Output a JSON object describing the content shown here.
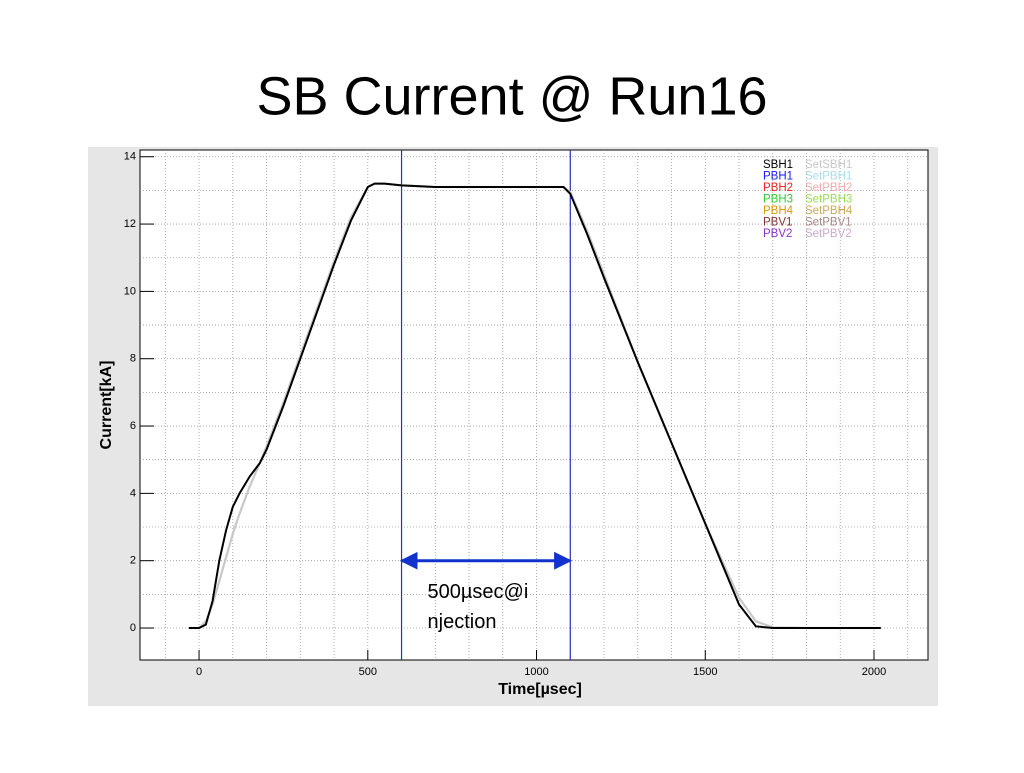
{
  "chart_data": {
    "type": "line",
    "title": "SB Current @ Run16",
    "xlabel": "Time[µsec]",
    "ylabel": "Current[kA]",
    "xlim": [
      -175,
      2160
    ],
    "ylim": [
      -0.95,
      14.2
    ],
    "xticks": [
      0,
      500,
      1000,
      1500,
      2000
    ],
    "yticks": [
      0,
      2,
      4,
      6,
      8,
      10,
      12,
      14
    ],
    "grid": true,
    "minor_per_major": {
      "x": 5,
      "y": 2
    },
    "x": [
      -30,
      0,
      20,
      40,
      60,
      80,
      100,
      120,
      150,
      180,
      200,
      250,
      300,
      350,
      400,
      450,
      500,
      520,
      550,
      600,
      700,
      800,
      900,
      1000,
      1080,
      1100,
      1150,
      1200,
      1300,
      1400,
      1500,
      1550,
      1600,
      1650,
      1700,
      1800,
      1900,
      2000,
      2020
    ],
    "series": [
      {
        "name": "SBH1",
        "color": "#000000",
        "values": [
          0,
          0,
          0.1,
          0.8,
          2.0,
          2.9,
          3.6,
          4.0,
          4.5,
          4.9,
          5.3,
          6.6,
          8.0,
          9.4,
          10.8,
          12.1,
          13.1,
          13.2,
          13.2,
          13.15,
          13.1,
          13.1,
          13.1,
          13.1,
          13.1,
          12.9,
          11.7,
          10.4,
          7.9,
          5.5,
          3.1,
          1.9,
          0.7,
          0.05,
          0,
          0,
          0,
          0,
          0
        ]
      },
      {
        "name": "SetSBH1",
        "color": "#c8c8c8",
        "values": [
          0,
          0,
          0.2,
          0.7,
          1.4,
          2.1,
          2.8,
          3.4,
          4.2,
          4.9,
          5.4,
          6.7,
          8.1,
          9.5,
          10.9,
          12.2,
          13.1,
          13.2,
          13.2,
          13.15,
          13.1,
          13.1,
          13.1,
          13.1,
          13.1,
          12.95,
          11.8,
          10.5,
          7.9,
          5.5,
          3.1,
          2.0,
          0.9,
          0.2,
          0.02,
          0,
          0,
          0,
          0
        ]
      },
      {
        "name": "PBH1",
        "color": "#1a1aff"
      },
      {
        "name": "SetPBH1",
        "color": "#a8dcef"
      },
      {
        "name": "PBH2",
        "color": "#ee2222"
      },
      {
        "name": "SetPBH2",
        "color": "#f4aaaa"
      },
      {
        "name": "PBH3",
        "color": "#33cc33"
      },
      {
        "name": "SetPBH3",
        "color": "#99dd55"
      },
      {
        "name": "PBH4",
        "color": "#dd9900"
      },
      {
        "name": "SetPBH4",
        "color": "#ccaa55"
      },
      {
        "name": "PBV1",
        "color": "#883333"
      },
      {
        "name": "SetPBV1",
        "color": "#aa8888"
      },
      {
        "name": "PBV2",
        "color": "#8833cc"
      },
      {
        "name": "SetPBV2",
        "color": "#ccaacc"
      }
    ],
    "vlines": [
      600,
      1100
    ],
    "vline_color": "#2233bb",
    "arrow": {
      "from": 600,
      "to": 1100,
      "y": 2,
      "color": "#1133cc"
    },
    "annotation": [
      "500µsec@i",
      "njection"
    ]
  }
}
